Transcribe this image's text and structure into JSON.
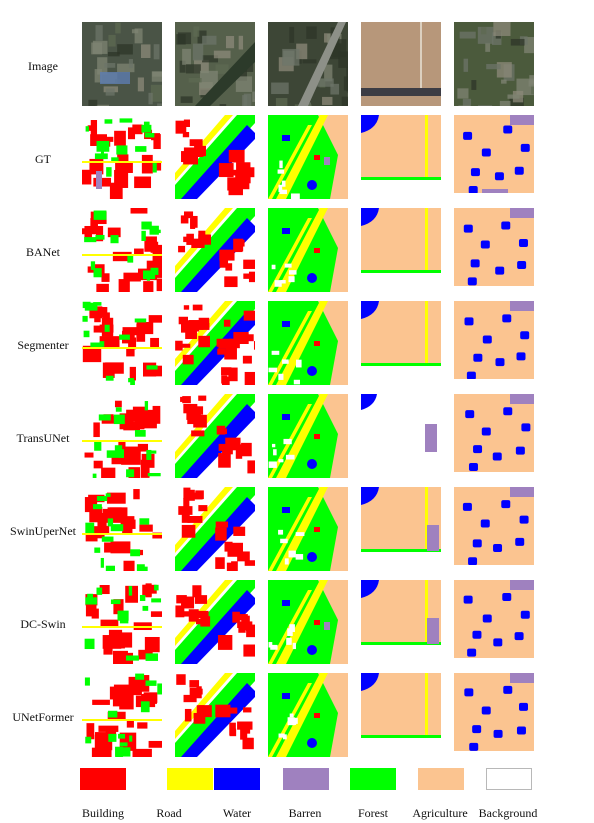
{
  "rows": [
    "Image",
    "GT",
    "BANet",
    "Segmenter",
    "TransUNet",
    "SwinUperNet",
    "DC-Swin",
    "UNetFormer"
  ],
  "legend": [
    {
      "label": "Building",
      "color": "#ff0000"
    },
    {
      "label": "Road",
      "color": "#ffff00"
    },
    {
      "label": "Water",
      "color": "#0000ff"
    },
    {
      "label": "Barren",
      "color": "#9f81bf"
    },
    {
      "label": "Forest",
      "color": "#00ff00"
    },
    {
      "label": "Agriculture",
      "color": "#fbc490"
    },
    {
      "label": "Background",
      "color": "#ffffff"
    }
  ],
  "colors": {
    "building": "#ff0000",
    "road": "#ffff00",
    "water": "#0000ff",
    "barren": "#9f81bf",
    "forest": "#00ff00",
    "agriculture": "#fbc490",
    "background": "#ffffff",
    "photo_dark": "#3b4536",
    "photo_field": "#a08a68",
    "photo_green": "#4d5b3e"
  }
}
